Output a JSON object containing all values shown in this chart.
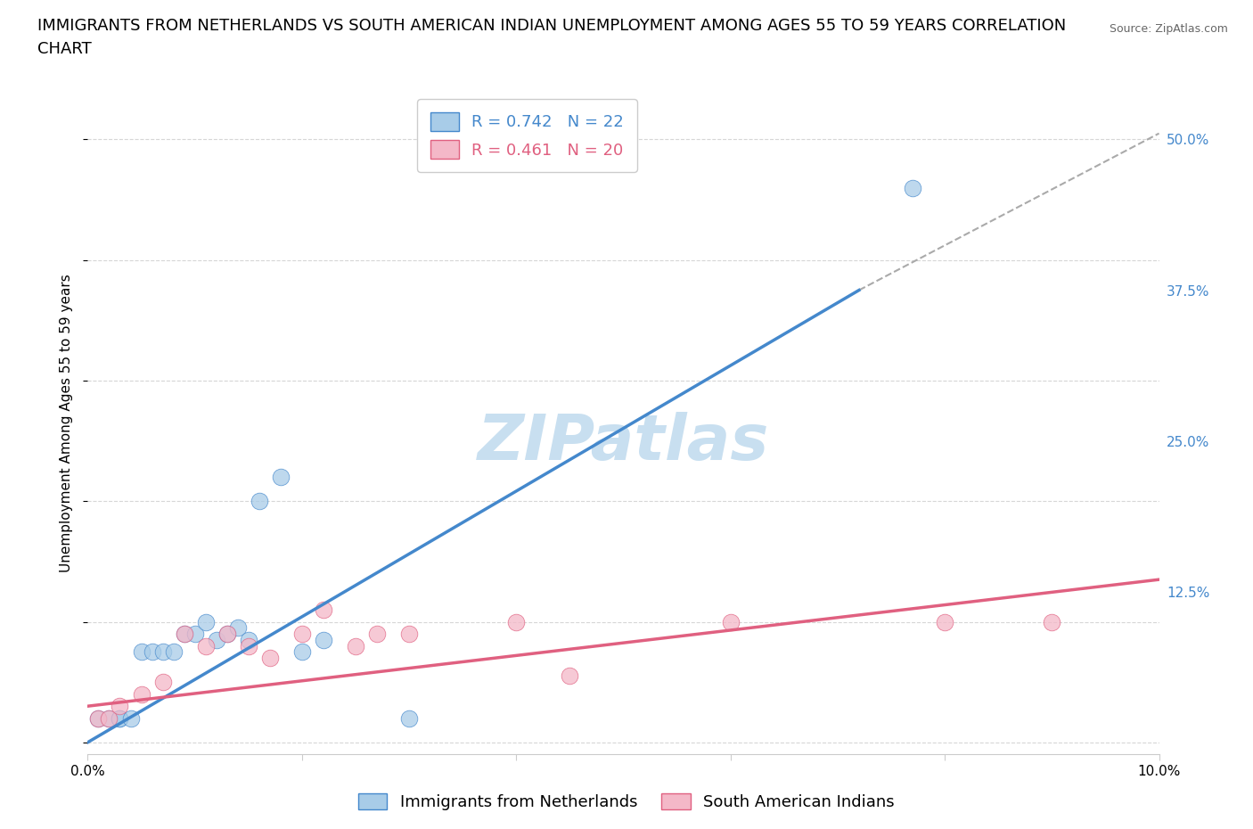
{
  "title_line1": "IMMIGRANTS FROM NETHERLANDS VS SOUTH AMERICAN INDIAN UNEMPLOYMENT AMONG AGES 55 TO 59 YEARS CORRELATION",
  "title_line2": "CHART",
  "source": "Source: ZipAtlas.com",
  "ylabel": "Unemployment Among Ages 55 to 59 years",
  "watermark": "ZIPatlas",
  "legend_r1": "R = 0.742",
  "legend_n1": "N = 22",
  "legend_r2": "R = 0.461",
  "legend_n2": "N = 20",
  "xlim": [
    0.0,
    0.1
  ],
  "ylim": [
    -0.01,
    0.54
  ],
  "yticks": [
    0.0,
    0.125,
    0.25,
    0.375,
    0.5
  ],
  "ytick_labels": [
    "",
    "12.5%",
    "25.0%",
    "37.5%",
    "50.0%"
  ],
  "color_blue": "#a8cce8",
  "color_pink": "#f4b8c8",
  "color_blue_line": "#4488cc",
  "color_pink_line": "#e06080",
  "color_dashed": "#aaaaaa",
  "blue_scatter_x": [
    0.001,
    0.002,
    0.003,
    0.003,
    0.004,
    0.005,
    0.006,
    0.007,
    0.008,
    0.009,
    0.01,
    0.011,
    0.012,
    0.013,
    0.014,
    0.015,
    0.016,
    0.018,
    0.02,
    0.022,
    0.03,
    0.077
  ],
  "blue_scatter_y": [
    0.02,
    0.02,
    0.02,
    0.02,
    0.02,
    0.075,
    0.075,
    0.075,
    0.075,
    0.09,
    0.09,
    0.1,
    0.085,
    0.09,
    0.095,
    0.085,
    0.2,
    0.22,
    0.075,
    0.085,
    0.02,
    0.46
  ],
  "pink_scatter_x": [
    0.001,
    0.002,
    0.003,
    0.005,
    0.007,
    0.009,
    0.011,
    0.013,
    0.015,
    0.017,
    0.02,
    0.022,
    0.025,
    0.027,
    0.03,
    0.04,
    0.045,
    0.06,
    0.08,
    0.09
  ],
  "pink_scatter_y": [
    0.02,
    0.02,
    0.03,
    0.04,
    0.05,
    0.09,
    0.08,
    0.09,
    0.08,
    0.07,
    0.09,
    0.11,
    0.08,
    0.09,
    0.09,
    0.1,
    0.055,
    0.1,
    0.1,
    0.1
  ],
  "blue_line_x": [
    0.0,
    0.072
  ],
  "blue_line_y": [
    0.0,
    0.375
  ],
  "pink_line_x": [
    0.0,
    0.1
  ],
  "pink_line_y": [
    0.03,
    0.135
  ],
  "dashed_line_x": [
    0.072,
    0.1
  ],
  "dashed_line_y": [
    0.375,
    0.505
  ],
  "grid_color": "#cccccc",
  "background_color": "#ffffff",
  "title_fontsize": 13,
  "axis_label_fontsize": 11,
  "tick_fontsize": 11,
  "legend_fontsize": 13,
  "watermark_fontsize": 52,
  "watermark_color": "#c8dff0",
  "scatter_size": 180
}
